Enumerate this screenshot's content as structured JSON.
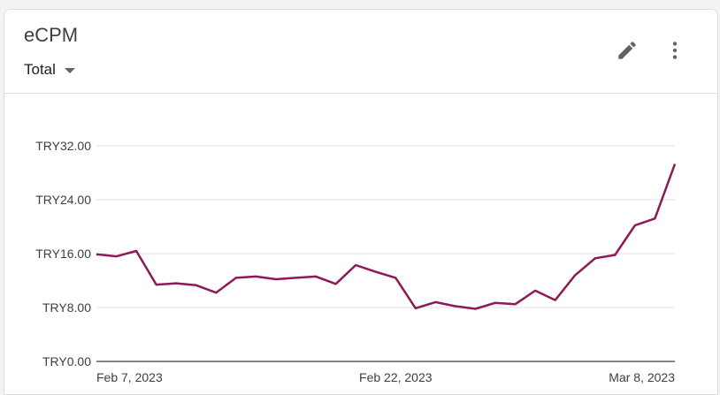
{
  "card": {
    "title": "eCPM",
    "dropdown_label": "Total",
    "icons": {
      "edit": "pencil-icon",
      "more": "more-vert-icon",
      "caret": "caret-down-icon"
    }
  },
  "colors": {
    "line": "#8b1a57",
    "grid": "#e0e0e0",
    "axis": "#3c4043",
    "icon": "#5f6368"
  },
  "chart_data": {
    "type": "line",
    "title": "",
    "xlabel": "",
    "ylabel": "",
    "ylim": [
      0,
      32
    ],
    "y_ticks": [
      {
        "value": 0,
        "label": "TRY0.00"
      },
      {
        "value": 8,
        "label": "TRY8.00"
      },
      {
        "value": 16,
        "label": "TRY16.00"
      },
      {
        "value": 24,
        "label": "TRY24.00"
      },
      {
        "value": 32,
        "label": "TRY32.00"
      }
    ],
    "x_ticks": [
      {
        "date": "2023-02-07",
        "label": "Feb 7, 2023"
      },
      {
        "date": "2023-02-22",
        "label": "Feb 22, 2023"
      },
      {
        "date": "2023-03-08",
        "label": "Mar 8, 2023"
      }
    ],
    "grid": true,
    "x": [
      "2023-02-07",
      "2023-02-08",
      "2023-02-09",
      "2023-02-10",
      "2023-02-11",
      "2023-02-12",
      "2023-02-13",
      "2023-02-14",
      "2023-02-15",
      "2023-02-16",
      "2023-02-17",
      "2023-02-18",
      "2023-02-19",
      "2023-02-20",
      "2023-02-21",
      "2023-02-22",
      "2023-02-23",
      "2023-02-24",
      "2023-02-25",
      "2023-02-26",
      "2023-02-27",
      "2023-02-28",
      "2023-03-01",
      "2023-03-02",
      "2023-03-03",
      "2023-03-04",
      "2023-03-05",
      "2023-03-06",
      "2023-03-07",
      "2023-03-08"
    ],
    "series": [
      {
        "values": [
          15.9,
          15.6,
          16.4,
          11.4,
          11.6,
          11.3,
          10.2,
          12.4,
          12.6,
          12.2,
          12.4,
          12.6,
          11.5,
          14.3,
          13.3,
          12.4,
          7.9,
          8.8,
          8.2,
          7.8,
          8.7,
          8.5,
          10.5,
          9.1,
          12.8,
          15.3,
          15.8,
          20.2,
          21.2,
          29.3
        ]
      }
    ]
  }
}
